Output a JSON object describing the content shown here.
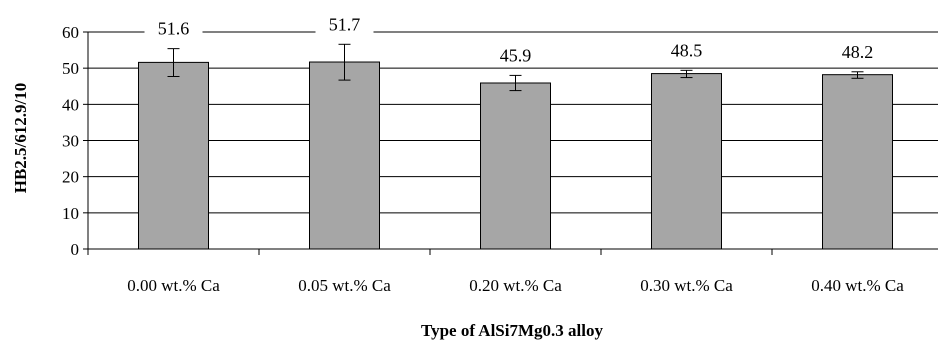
{
  "chart_data": {
    "type": "bar",
    "categories": [
      "0.00 wt.% Ca",
      "0.05 wt.% Ca",
      "0.20 wt.% Ca",
      "0.30 wt.% Ca",
      "0.40 wt.% Ca"
    ],
    "values": [
      51.6,
      51.7,
      45.9,
      48.5,
      48.2
    ],
    "error_bars": [
      {
        "low": 47.7,
        "high": 55.4
      },
      {
        "low": 46.7,
        "high": 56.6
      },
      {
        "low": 43.8,
        "high": 48.0
      },
      {
        "low": 47.4,
        "high": 49.4
      },
      {
        "low": 47.2,
        "high": 49.0
      }
    ],
    "data_labels": [
      "51.6",
      "51.7",
      "45.9",
      "48.5",
      "48.2"
    ],
    "xlabel": "Type of AlSi7Mg0.3 alloy",
    "ylabel": "HB2.5/612.9/10",
    "ylim": [
      0,
      60
    ],
    "yticks": [
      "0",
      "10",
      "20",
      "30",
      "40",
      "50",
      "60"
    ],
    "grid": true,
    "bar_color": "#a6a6a6",
    "legend": "none"
  }
}
